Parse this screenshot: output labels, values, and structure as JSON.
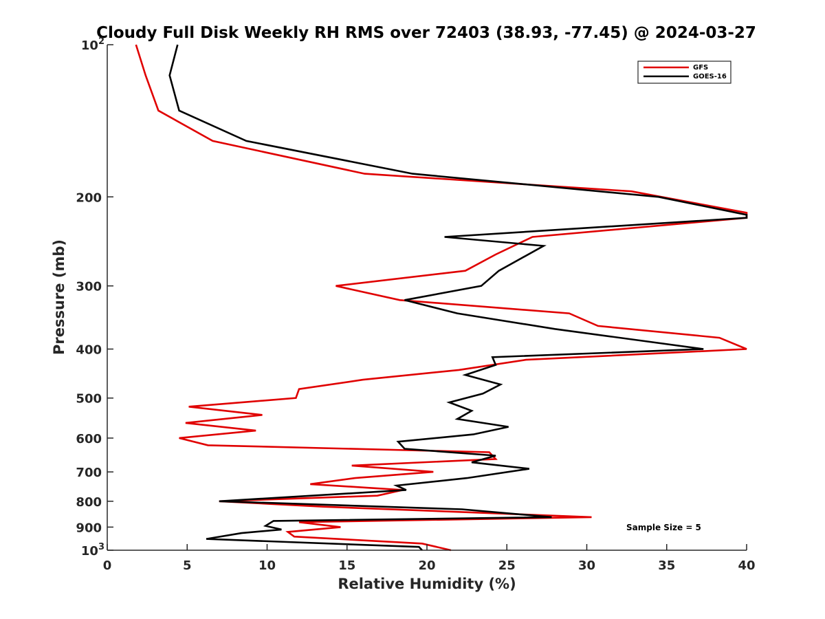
{
  "chart_data": {
    "type": "line",
    "title": "Cloudy Full Disk Weekly RH RMS over 72403 (38.93, -77.45) @ 2024-03-27",
    "xlabel": "Relative Humidity (%)",
    "ylabel": "Pressure (mb)",
    "xlim": [
      0,
      40
    ],
    "ylim": [
      100,
      1000
    ],
    "y_scale": "log",
    "y_reversed": true,
    "x_ticks": [
      "0",
      "5",
      "10",
      "15",
      "20",
      "25",
      "30",
      "35",
      "40"
    ],
    "y_ticks": [
      {
        "value": 100,
        "base": "10",
        "exp": "2"
      },
      {
        "value": 200,
        "label": "200"
      },
      {
        "value": 300,
        "label": "300"
      },
      {
        "value": 400,
        "label": "400"
      },
      {
        "value": 500,
        "label": "500"
      },
      {
        "value": 600,
        "label": "600"
      },
      {
        "value": 700,
        "label": "700"
      },
      {
        "value": 800,
        "label": "800"
      },
      {
        "value": 900,
        "label": "900"
      },
      {
        "value": 1000,
        "base": "10",
        "exp": "3"
      }
    ],
    "legend_position": "top-right",
    "annotation": "Sample Size = 5",
    "series": [
      {
        "name": "GFS",
        "color": "#e00000",
        "points": [
          [
            1.8,
            100
          ],
          [
            2.4,
            115
          ],
          [
            3.2,
            135
          ],
          [
            6.6,
            155
          ],
          [
            16.1,
            180
          ],
          [
            32.8,
            195
          ],
          [
            40,
            215
          ],
          [
            40,
            220
          ],
          [
            26.6,
            240
          ],
          [
            24.3,
            260
          ],
          [
            22.4,
            280
          ],
          [
            14.3,
            300
          ],
          [
            18.3,
            320
          ],
          [
            28.9,
            340
          ],
          [
            30.7,
            360
          ],
          [
            38.3,
            380
          ],
          [
            40,
            400
          ],
          [
            26.2,
            420
          ],
          [
            22.0,
            440
          ],
          [
            16.0,
            460
          ],
          [
            12.0,
            480
          ],
          [
            11.8,
            500
          ],
          [
            5.1,
            520
          ],
          [
            9.7,
            540
          ],
          [
            4.9,
            560
          ],
          [
            9.3,
            580
          ],
          [
            4.5,
            600
          ],
          [
            6.3,
            620
          ],
          [
            23.9,
            640
          ],
          [
            24.3,
            660
          ],
          [
            15.3,
            680
          ],
          [
            20.4,
            700
          ],
          [
            15.5,
            720
          ],
          [
            12.7,
            740
          ],
          [
            18.5,
            760
          ],
          [
            16.9,
            780
          ],
          [
            7.0,
            800
          ],
          [
            13.5,
            820
          ],
          [
            22.0,
            840
          ],
          [
            30.3,
            860
          ],
          [
            12.0,
            880
          ],
          [
            14.6,
            900
          ],
          [
            11.3,
            920
          ],
          [
            11.7,
            940
          ],
          [
            19.7,
            970
          ],
          [
            21.5,
            1000
          ]
        ]
      },
      {
        "name": "GOES-16",
        "color": "#000000",
        "points": [
          [
            4.4,
            100
          ],
          [
            3.9,
            115
          ],
          [
            4.5,
            135
          ],
          [
            8.7,
            155
          ],
          [
            19.1,
            180
          ],
          [
            34.5,
            200
          ],
          [
            40,
            217
          ],
          [
            40,
            220
          ],
          [
            21.1,
            240
          ],
          [
            27.3,
            250
          ],
          [
            24.5,
            280
          ],
          [
            23.4,
            300
          ],
          [
            18.6,
            320
          ],
          [
            21.9,
            340
          ],
          [
            28.0,
            365
          ],
          [
            37.3,
            400
          ],
          [
            24.1,
            415
          ],
          [
            24.3,
            430
          ],
          [
            22.4,
            450
          ],
          [
            24.6,
            470
          ],
          [
            23.5,
            490
          ],
          [
            21.4,
            510
          ],
          [
            22.8,
            530
          ],
          [
            21.9,
            550
          ],
          [
            25.1,
            570
          ],
          [
            22.9,
            590
          ],
          [
            18.2,
            610
          ],
          [
            18.6,
            630
          ],
          [
            24.3,
            650
          ],
          [
            22.8,
            670
          ],
          [
            26.4,
            690
          ],
          [
            22.5,
            720
          ],
          [
            18.1,
            745
          ],
          [
            18.7,
            760
          ],
          [
            7.0,
            800
          ],
          [
            22.2,
            830
          ],
          [
            27.8,
            860
          ],
          [
            10.4,
            875
          ],
          [
            9.9,
            895
          ],
          [
            10.9,
            910
          ],
          [
            8.4,
            925
          ],
          [
            6.2,
            950
          ],
          [
            19.5,
            985
          ],
          [
            19.7,
            1000
          ]
        ]
      }
    ]
  }
}
